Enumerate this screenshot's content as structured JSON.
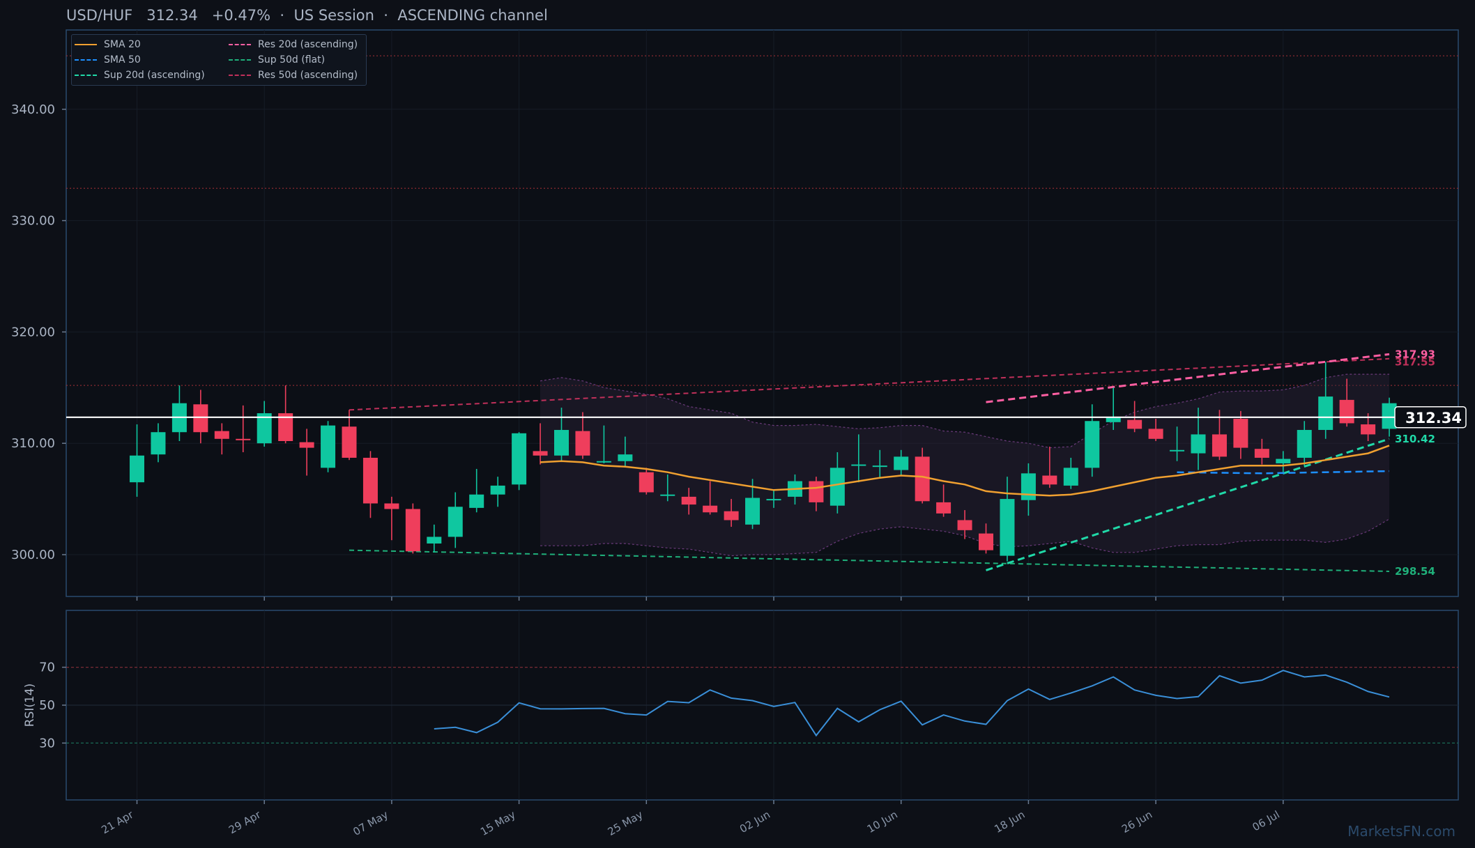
{
  "header": {
    "symbol": "USD/HUF",
    "price": "312.34",
    "change": "+0.47%",
    "session": "US Session",
    "channel": "ASCENDING channel"
  },
  "watermark": "MarketsFN.com",
  "colors": {
    "background": "#0d1017",
    "panel_border": "#2a4a6e",
    "up": "#0fc7a0",
    "down": "#ef3e5c",
    "sma20": "#f0a030",
    "sma50": "#1e90ff",
    "sup20": "#20d9a8",
    "res20": "#ff5fa2",
    "sup50": "#1fb07a",
    "res50": "#c0305a",
    "rsi": "#3a8fd8",
    "bollinger": "#6a3a7a",
    "last_price": "#ffffff"
  },
  "legend": [
    {
      "label": "SMA 20",
      "color": "#f0a030",
      "style": "solid"
    },
    {
      "label": "Res 20d (ascending)",
      "color": "#ff5fa2",
      "style": "dashed"
    },
    {
      "label": "SMA 50",
      "color": "#1e90ff",
      "style": "dashed"
    },
    {
      "label": "Sup 50d (flat)",
      "color": "#1fb07a",
      "style": "dashed"
    },
    {
      "label": "Sup 20d (ascending)",
      "color": "#20d9a8",
      "style": "dashed"
    },
    {
      "label": "Res 50d (ascending)",
      "color": "#c0305a",
      "style": "dashed"
    }
  ],
  "chart_data": {
    "type": "candlestick",
    "price_axis": {
      "range": [
        296.25,
        347.5
      ],
      "ticks": [
        "300.00",
        "310.00",
        "320.00",
        "330.00",
        "340.00"
      ]
    },
    "x_ticks": [
      {
        "day": 0,
        "label": "21 Apr"
      },
      {
        "day": 6,
        "label": "29 Apr"
      },
      {
        "day": 12,
        "label": "07 May"
      },
      {
        "day": 18,
        "label": "15 May"
      },
      {
        "day": 24,
        "label": "25 May"
      },
      {
        "day": 30,
        "label": "02 Jun"
      },
      {
        "day": 36,
        "label": "10 Jun"
      },
      {
        "day": 42,
        "label": "18 Jun"
      },
      {
        "day": 48,
        "label": "26 Jun"
      },
      {
        "day": 54,
        "label": "06 Jul"
      }
    ],
    "candles": [
      [
        306.5,
        308.9,
        305.2,
        311.7
      ],
      [
        309.0,
        311.0,
        308.3,
        311.8
      ],
      [
        311.0,
        313.6,
        310.2,
        315.2
      ],
      [
        313.5,
        311.0,
        310.0,
        314.8
      ],
      [
        311.1,
        310.4,
        309.0,
        311.8
      ],
      [
        310.4,
        310.3,
        309.2,
        313.4
      ],
      [
        310.0,
        312.7,
        309.7,
        313.8
      ],
      [
        312.7,
        310.2,
        310.0,
        315.2
      ],
      [
        310.1,
        309.6,
        307.1,
        311.3
      ],
      [
        307.8,
        311.6,
        307.4,
        312.0
      ],
      [
        311.5,
        308.7,
        308.5,
        313.0
      ],
      [
        308.7,
        304.6,
        303.3,
        309.3
      ],
      [
        304.6,
        304.1,
        301.3,
        305.2
      ],
      [
        304.1,
        300.3,
        300.1,
        304.6
      ],
      [
        301.0,
        301.6,
        300.2,
        302.7
      ],
      [
        301.6,
        304.3,
        300.6,
        305.6
      ],
      [
        304.2,
        305.4,
        303.8,
        307.7
      ],
      [
        305.4,
        306.2,
        304.3,
        307.0
      ],
      [
        306.3,
        310.9,
        305.8,
        311.0
      ],
      [
        309.3,
        308.9,
        308.1,
        311.8
      ],
      [
        308.9,
        311.2,
        308.4,
        313.2
      ],
      [
        311.1,
        308.9,
        308.6,
        312.8
      ],
      [
        308.3,
        308.4,
        308.2,
        311.6
      ],
      [
        308.4,
        309.0,
        307.9,
        310.6
      ],
      [
        307.4,
        305.6,
        305.4,
        307.8
      ],
      [
        305.4,
        305.4,
        304.8,
        307.2
      ],
      [
        305.2,
        304.5,
        303.6,
        306.0
      ],
      [
        304.4,
        303.8,
        303.6,
        306.6
      ],
      [
        303.9,
        303.1,
        302.5,
        305.0
      ],
      [
        302.7,
        305.1,
        302.3,
        306.8
      ],
      [
        305.0,
        305.0,
        304.2,
        305.8
      ],
      [
        305.2,
        306.6,
        304.5,
        307.2
      ],
      [
        306.6,
        304.7,
        303.9,
        307.0
      ],
      [
        304.4,
        307.8,
        303.7,
        309.2
      ],
      [
        308.1,
        308.1,
        306.5,
        310.8
      ],
      [
        308.0,
        308.0,
        306.9,
        309.4
      ],
      [
        307.6,
        308.8,
        307.1,
        309.4
      ],
      [
        308.8,
        304.8,
        304.6,
        309.6
      ],
      [
        304.7,
        303.7,
        303.4,
        306.3
      ],
      [
        303.1,
        302.2,
        301.4,
        304.0
      ],
      [
        301.9,
        300.4,
        300.1,
        302.8
      ],
      [
        299.9,
        305.0,
        299.4,
        307.0
      ],
      [
        304.9,
        307.3,
        303.5,
        308.2
      ],
      [
        307.1,
        306.3,
        306.0,
        309.7
      ],
      [
        306.2,
        307.8,
        305.9,
        308.7
      ],
      [
        307.8,
        312.0,
        307.0,
        313.5
      ],
      [
        311.9,
        312.3,
        311.2,
        315.0
      ],
      [
        312.1,
        311.3,
        311.0,
        313.8
      ],
      [
        311.3,
        310.4,
        310.2,
        312.2
      ],
      [
        309.3,
        309.4,
        308.4,
        311.5
      ],
      [
        309.1,
        310.8,
        307.6,
        313.2
      ],
      [
        310.8,
        308.8,
        308.5,
        313.0
      ],
      [
        312.2,
        309.6,
        308.6,
        312.9
      ],
      [
        309.5,
        308.7,
        308.1,
        310.4
      ],
      [
        308.2,
        308.6,
        307.4,
        309.3
      ],
      [
        308.7,
        311.2,
        308.0,
        312.0
      ],
      [
        311.2,
        314.2,
        310.4,
        317.3
      ],
      [
        313.9,
        311.8,
        311.5,
        315.8
      ],
      [
        311.7,
        310.8,
        310.2,
        312.7
      ],
      [
        311.3,
        313.6,
        310.6,
        314.1
      ]
    ],
    "sma20": [
      [
        19,
        308.3
      ],
      [
        20,
        308.4
      ],
      [
        21,
        308.3
      ],
      [
        22,
        308.0
      ],
      [
        23,
        307.9
      ],
      [
        24,
        307.7
      ],
      [
        25,
        307.4
      ],
      [
        26,
        307.0
      ],
      [
        27,
        306.7
      ],
      [
        28,
        306.4
      ],
      [
        29,
        306.1
      ],
      [
        30,
        305.8
      ],
      [
        31,
        305.9
      ],
      [
        32,
        306.0
      ],
      [
        33,
        306.3
      ],
      [
        34,
        306.6
      ],
      [
        35,
        306.9
      ],
      [
        36,
        307.1
      ],
      [
        37,
        307.0
      ],
      [
        38,
        306.6
      ],
      [
        39,
        306.3
      ],
      [
        40,
        305.7
      ],
      [
        41,
        305.5
      ],
      [
        42,
        305.4
      ],
      [
        43,
        305.3
      ],
      [
        44,
        305.4
      ],
      [
        45,
        305.7
      ],
      [
        46,
        306.1
      ],
      [
        47,
        306.5
      ],
      [
        48,
        306.9
      ],
      [
        49,
        307.1
      ],
      [
        50,
        307.4
      ],
      [
        51,
        307.7
      ],
      [
        52,
        308.0
      ],
      [
        53,
        308.0
      ],
      [
        54,
        308.0
      ],
      [
        55,
        308.2
      ],
      [
        56,
        308.5
      ],
      [
        57,
        308.8
      ],
      [
        58,
        309.1
      ],
      [
        59,
        309.8
      ]
    ],
    "bollinger_upper": [
      [
        19,
        315.6
      ],
      [
        20,
        315.9
      ],
      [
        21,
        315.6
      ],
      [
        22,
        315.0
      ],
      [
        23,
        314.7
      ],
      [
        24,
        314.4
      ],
      [
        25,
        314.0
      ],
      [
        26,
        313.3
      ],
      [
        27,
        313.0
      ],
      [
        28,
        312.7
      ],
      [
        29,
        311.9
      ],
      [
        30,
        311.6
      ],
      [
        31,
        311.6
      ],
      [
        32,
        311.7
      ],
      [
        33,
        311.5
      ],
      [
        34,
        311.3
      ],
      [
        35,
        311.4
      ],
      [
        36,
        311.6
      ],
      [
        37,
        311.6
      ],
      [
        38,
        311.1
      ],
      [
        39,
        311.0
      ],
      [
        40,
        310.6
      ],
      [
        41,
        310.2
      ],
      [
        42,
        310.0
      ],
      [
        43,
        309.6
      ],
      [
        44,
        309.7
      ],
      [
        45,
        310.9
      ],
      [
        46,
        312.0
      ],
      [
        47,
        312.8
      ],
      [
        48,
        313.3
      ],
      [
        49,
        313.6
      ],
      [
        50,
        314.0
      ],
      [
        51,
        314.6
      ],
      [
        52,
        314.7
      ],
      [
        53,
        314.7
      ],
      [
        54,
        314.8
      ],
      [
        55,
        315.2
      ],
      [
        56,
        315.9
      ],
      [
        57,
        316.2
      ],
      [
        58,
        316.2
      ],
      [
        59,
        316.2
      ]
    ],
    "bollinger_lower": [
      [
        19,
        300.8
      ],
      [
        20,
        300.8
      ],
      [
        21,
        300.8
      ],
      [
        22,
        301.0
      ],
      [
        23,
        301.0
      ],
      [
        24,
        300.8
      ],
      [
        25,
        300.6
      ],
      [
        26,
        300.5
      ],
      [
        27,
        300.2
      ],
      [
        28,
        299.9
      ],
      [
        29,
        300.0
      ],
      [
        30,
        300.0
      ],
      [
        31,
        300.1
      ],
      [
        32,
        300.2
      ],
      [
        33,
        301.2
      ],
      [
        34,
        301.9
      ],
      [
        35,
        302.3
      ],
      [
        36,
        302.5
      ],
      [
        37,
        302.3
      ],
      [
        38,
        302.1
      ],
      [
        39,
        301.7
      ],
      [
        40,
        301.0
      ],
      [
        41,
        300.7
      ],
      [
        42,
        300.8
      ],
      [
        43,
        301.0
      ],
      [
        44,
        301.2
      ],
      [
        45,
        300.6
      ],
      [
        46,
        300.2
      ],
      [
        47,
        300.2
      ],
      [
        48,
        300.5
      ],
      [
        49,
        300.8
      ],
      [
        50,
        300.9
      ],
      [
        51,
        300.9
      ],
      [
        52,
        301.2
      ],
      [
        53,
        301.3
      ],
      [
        54,
        301.3
      ],
      [
        55,
        301.3
      ],
      [
        56,
        301.1
      ],
      [
        57,
        301.4
      ],
      [
        58,
        302.1
      ],
      [
        59,
        303.2
      ]
    ],
    "sma50": [
      [
        49,
        307.4
      ],
      [
        53,
        307.3
      ],
      [
        59,
        307.5
      ]
    ],
    "sup20": [
      [
        40,
        298.6
      ],
      [
        59,
        310.4
      ]
    ],
    "res20": [
      [
        40,
        313.7
      ],
      [
        59,
        318.0
      ]
    ],
    "sup50": [
      [
        10,
        300.4
      ],
      [
        59,
        298.5
      ]
    ],
    "res50": [
      [
        10,
        313.0
      ],
      [
        59,
        317.6
      ]
    ],
    "horizontal_levels": [
      344.8,
      332.9,
      315.2
    ],
    "last_price": 312.34,
    "price_tags": [
      {
        "value": 317.93,
        "label": "317.93",
        "color": "#ff5fa2",
        "y": 318.0
      },
      {
        "value": 317.55,
        "label": "317.55",
        "color": "#c0305a",
        "y": 317.3
      },
      {
        "value": 310.42,
        "label": "310.42",
        "color": "#20d9a8",
        "y": 310.4
      },
      {
        "value": 298.54,
        "label": "298.54",
        "color": "#1fb07a",
        "y": 298.5
      }
    ],
    "last_price_label": "312.34",
    "rsi": {
      "label": "RSI(14)",
      "range": [
        0,
        100
      ],
      "ticks": [
        "70",
        "50",
        "30"
      ],
      "levels": [
        70,
        50,
        30
      ],
      "values": [
        [
          14,
          37.5
        ],
        [
          15,
          38.3
        ],
        [
          16,
          35.5
        ],
        [
          17,
          41.0
        ],
        [
          18,
          51.2
        ],
        [
          19,
          48.1
        ],
        [
          20,
          48.0
        ],
        [
          21,
          48.2
        ],
        [
          22,
          48.3
        ],
        [
          23,
          45.5
        ],
        [
          24,
          44.8
        ],
        [
          25,
          52.0
        ],
        [
          26,
          51.3
        ],
        [
          27,
          58.0
        ],
        [
          28,
          53.7
        ],
        [
          29,
          52.4
        ],
        [
          30,
          49.3
        ],
        [
          31,
          51.4
        ],
        [
          32,
          34.0
        ],
        [
          33,
          48.3
        ],
        [
          34,
          41.2
        ],
        [
          35,
          47.6
        ],
        [
          36,
          52.1
        ],
        [
          37,
          39.6
        ],
        [
          38,
          44.8
        ],
        [
          39,
          41.6
        ],
        [
          40,
          39.9
        ],
        [
          41,
          52.4
        ],
        [
          42,
          58.5
        ],
        [
          43,
          53.0
        ],
        [
          44,
          56.4
        ],
        [
          45,
          60.2
        ],
        [
          46,
          64.9
        ],
        [
          47,
          58.0
        ],
        [
          48,
          55.2
        ],
        [
          49,
          53.5
        ],
        [
          50,
          54.5
        ],
        [
          51,
          65.5
        ],
        [
          52,
          61.6
        ],
        [
          53,
          63.2
        ],
        [
          54,
          68.3
        ],
        [
          55,
          64.9
        ],
        [
          56,
          65.9
        ],
        [
          57,
          62.1
        ],
        [
          58,
          57.2
        ],
        [
          59,
          54.3
        ]
      ]
    }
  }
}
